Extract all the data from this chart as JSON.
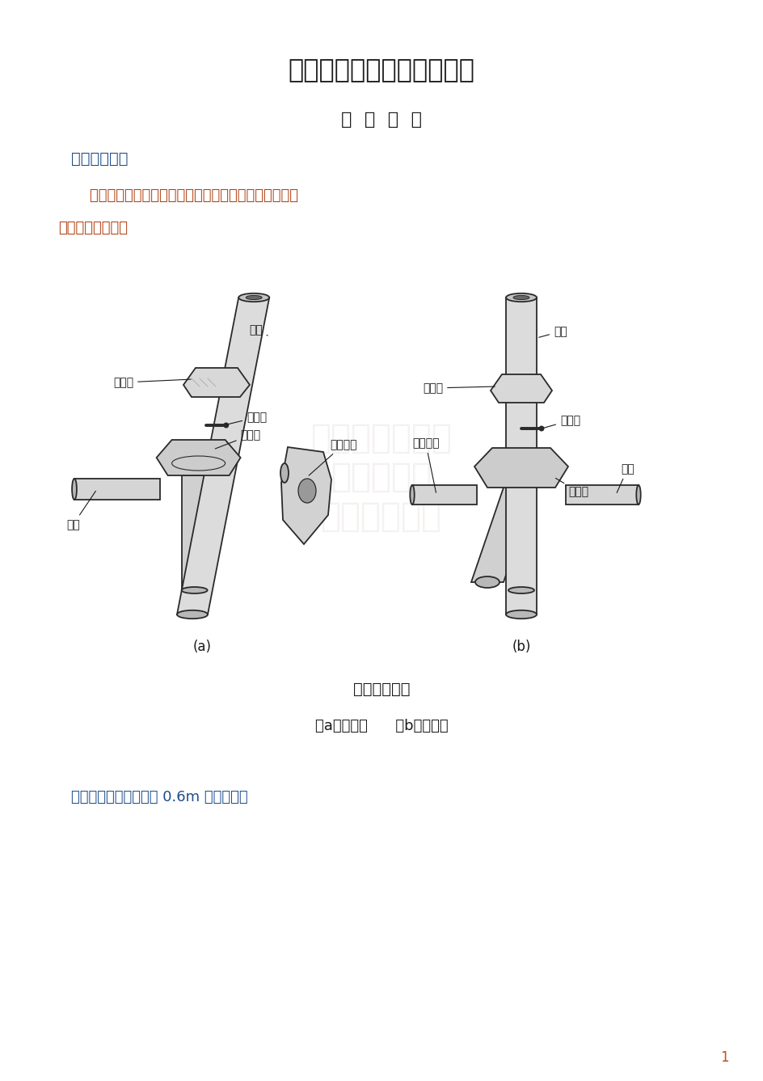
{
  "title": "建筑施工碗扣式钢管脚手架",
  "subtitle": "构  造  要  求",
  "section1": "一、碗扣节点",
  "para1_line1": "    立杆的碗扣结点应由上碗扣、下碗扣、横杆接头和上碗",
  "para1_line2": "扣限位销等构成。",
  "fig_caption1": "碗扣节点构成",
  "fig_caption2": "（a）连接前      （b）连接后",
  "label_a": "(a)",
  "label_b": "(b)",
  "para2": "立杆碗扣节点间距应按 0.6m 模数设置。",
  "page_num": "1",
  "bg_color": "#ffffff",
  "text_black": "#1a1a1a",
  "text_blue": "#1e4d8c",
  "text_orange": "#b04010",
  "line_color": "#2a2a2a",
  "watermark_color": "#c8c0b8"
}
